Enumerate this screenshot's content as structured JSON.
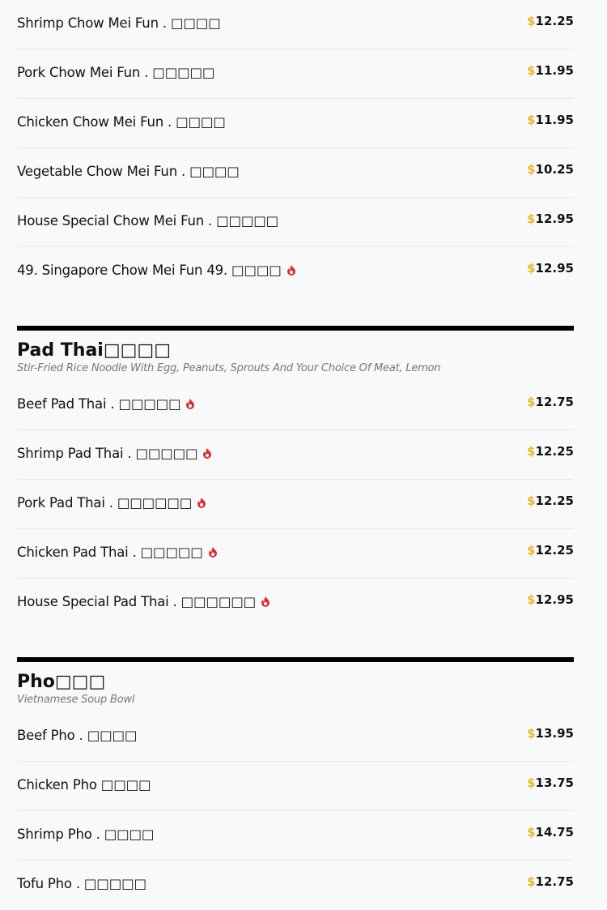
{
  "colors": {
    "dollar": "#e6b925",
    "spicy": "#d9302c"
  },
  "sections": [
    {
      "title": "",
      "desc": "",
      "items": [
        {
          "name": "Shrimp Chow Mei Fun . □□□□",
          "price": "12.25",
          "spicy": false
        },
        {
          "name": "Pork Chow Mei Fun . □□□□□",
          "price": "11.95",
          "spicy": false
        },
        {
          "name": "Chicken Chow Mei Fun . □□□□",
          "price": "11.95",
          "spicy": false
        },
        {
          "name": "Vegetable Chow Mei Fun . □□□□",
          "price": "10.25",
          "spicy": false
        },
        {
          "name": "House Special Chow Mei Fun . □□□□□",
          "price": "12.95",
          "spicy": false
        },
        {
          "name": "49. Singapore Chow Mei Fun 49. □□□□",
          "price": "12.95",
          "spicy": true
        }
      ]
    },
    {
      "title": "Pad Thai□□□□",
      "desc": "Stir-Fried Rice Noodle With Egg, Peanuts, Sprouts And Your Choice Of Meat, Lemon",
      "items": [
        {
          "name": "Beef Pad Thai . □□□□□",
          "price": "12.75",
          "spicy": true
        },
        {
          "name": "Shrimp Pad Thai . □□□□□",
          "price": "12.25",
          "spicy": true
        },
        {
          "name": "Pork Pad Thai . □□□□□□",
          "price": "12.25",
          "spicy": true
        },
        {
          "name": "Chicken Pad Thai . □□□□□",
          "price": "12.25",
          "spicy": true
        },
        {
          "name": "House Special Pad Thai . □□□□□□",
          "price": "12.95",
          "spicy": true
        }
      ]
    },
    {
      "title": "Pho□□□",
      "desc": "Vietnamese Soup Bowl",
      "items": [
        {
          "name": "Beef Pho . □□□□",
          "price": "13.95",
          "spicy": false
        },
        {
          "name": "Chicken Pho □□□□",
          "price": "13.75",
          "spicy": false
        },
        {
          "name": "Shrimp Pho . □□□□",
          "price": "14.75",
          "spicy": false
        },
        {
          "name": "Tofu Pho . □□□□□",
          "price": "12.75",
          "spicy": false
        }
      ]
    }
  ],
  "currency": "$"
}
